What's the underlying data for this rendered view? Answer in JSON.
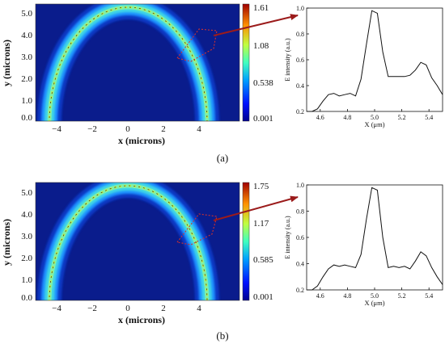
{
  "panels": [
    {
      "caption": "(a)",
      "field": {
        "xlabel": "x (microns)",
        "ylabel": "y (microns)",
        "xticks": [
          "−4",
          "−2",
          "0",
          "2",
          "4"
        ],
        "yticks": [
          "5.0",
          "4.0",
          "3.0",
          "2.0",
          "1.0",
          "0.0"
        ],
        "colorbar_ticks": [
          "1.61",
          "1.08",
          "0.538",
          "0.001"
        ]
      }
    },
    {
      "caption": "(b)",
      "field": {
        "xlabel": "x (microns)",
        "ylabel": "y (microns)",
        "xticks": [
          "−4",
          "−2",
          "0",
          "2",
          "4"
        ],
        "yticks": [
          "5.0",
          "4.0",
          "3.0",
          "2.0",
          "1.0",
          "0.0"
        ],
        "colorbar_ticks": [
          "1.75",
          "1.17",
          "0.585",
          "0.001"
        ]
      }
    }
  ],
  "chart_data": [
    {
      "type": "heatmap",
      "xlabel": "x (microns)",
      "ylabel": "y (microns)",
      "xlim": [
        -5.4,
        6.0
      ],
      "ylim": [
        -0.2,
        5.3
      ],
      "colorbar_range": [
        0.001,
        1.61
      ],
      "colorbar_ticks": [
        1.61,
        1.08,
        0.538,
        0.001
      ]
    },
    {
      "type": "line",
      "xlabel": "X (μm)",
      "ylabel": "E intensity (a.u.)",
      "xlim": [
        4.5,
        5.5
      ],
      "ylim": [
        0.2,
        1.0
      ],
      "xticks": [
        4.6,
        4.8,
        5.0,
        5.2,
        5.4
      ],
      "yticks": [
        0.2,
        0.4,
        0.6,
        0.8,
        1.0
      ],
      "x": [
        4.5,
        4.54,
        4.58,
        4.62,
        4.66,
        4.7,
        4.74,
        4.78,
        4.82,
        4.86,
        4.9,
        4.94,
        4.98,
        5.02,
        5.06,
        5.1,
        5.14,
        5.18,
        5.22,
        5.26,
        5.3,
        5.34,
        5.38,
        5.42,
        5.46,
        5.5
      ],
      "y": [
        0.12,
        0.16,
        0.22,
        0.28,
        0.33,
        0.34,
        0.32,
        0.33,
        0.34,
        0.32,
        0.45,
        0.72,
        0.98,
        0.96,
        0.66,
        0.47,
        0.47,
        0.47,
        0.47,
        0.48,
        0.52,
        0.58,
        0.56,
        0.46,
        0.4,
        0.33
      ]
    },
    {
      "type": "heatmap",
      "xlabel": "x (microns)",
      "ylabel": "y (microns)",
      "xlim": [
        -5.4,
        6.0
      ],
      "ylim": [
        -0.2,
        5.3
      ],
      "colorbar_range": [
        0.001,
        1.75
      ],
      "colorbar_ticks": [
        1.75,
        1.17,
        0.585,
        0.001
      ]
    },
    {
      "type": "line",
      "xlabel": "X (μm)",
      "ylabel": "E intensity (a.u.)",
      "xlim": [
        4.5,
        5.5
      ],
      "ylim": [
        0.2,
        1.0
      ],
      "xticks": [
        4.6,
        4.8,
        5.0,
        5.2,
        5.4
      ],
      "yticks": [
        0.2,
        0.4,
        0.6,
        0.8,
        1.0
      ],
      "x": [
        4.5,
        4.54,
        4.58,
        4.62,
        4.66,
        4.7,
        4.74,
        4.78,
        4.82,
        4.86,
        4.9,
        4.94,
        4.98,
        5.02,
        5.06,
        5.1,
        5.14,
        5.18,
        5.22,
        5.26,
        5.3,
        5.34,
        5.38,
        5.42,
        5.46,
        5.5
      ],
      "y": [
        0.12,
        0.17,
        0.23,
        0.3,
        0.36,
        0.39,
        0.38,
        0.39,
        0.38,
        0.37,
        0.47,
        0.74,
        0.98,
        0.96,
        0.6,
        0.37,
        0.38,
        0.37,
        0.38,
        0.36,
        0.42,
        0.49,
        0.46,
        0.37,
        0.3,
        0.24
      ]
    }
  ]
}
